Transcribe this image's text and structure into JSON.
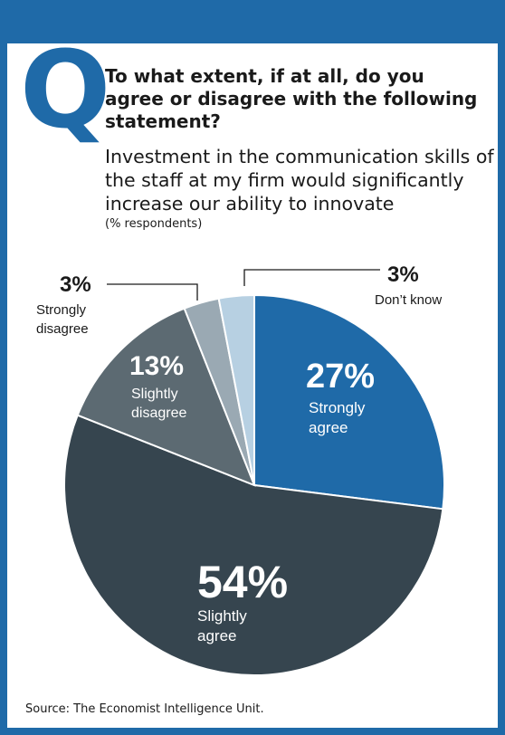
{
  "header": {
    "q_letter": "Q",
    "question": "To what extent, if at all, do you agree or disagree with the following statement?",
    "statement": "Investment in the communication skills of the staff at my firm would significantly increase our ability to innovate",
    "unit": "(% respondents)"
  },
  "chart_data": {
    "type": "pie",
    "title": "",
    "unit": "%",
    "slices": [
      {
        "label": "Strongly agree",
        "value": 27,
        "value_label": "27%",
        "color": "#1f6aa8"
      },
      {
        "label": "Slightly agree",
        "value": 54,
        "value_label": "54%",
        "color": "#36454f"
      },
      {
        "label": "Slightly disagree",
        "value": 13,
        "value_label": "13%",
        "color": "#5c6a72"
      },
      {
        "label": "Strongly disagree",
        "value": 3,
        "value_label": "3%",
        "color": "#9aa9b3"
      },
      {
        "label": "Don’t know",
        "value": 3,
        "value_label": "3%",
        "color": "#b7d0e2"
      }
    ]
  },
  "footer": {
    "source": "Source: The Economist Intelligence Unit."
  }
}
